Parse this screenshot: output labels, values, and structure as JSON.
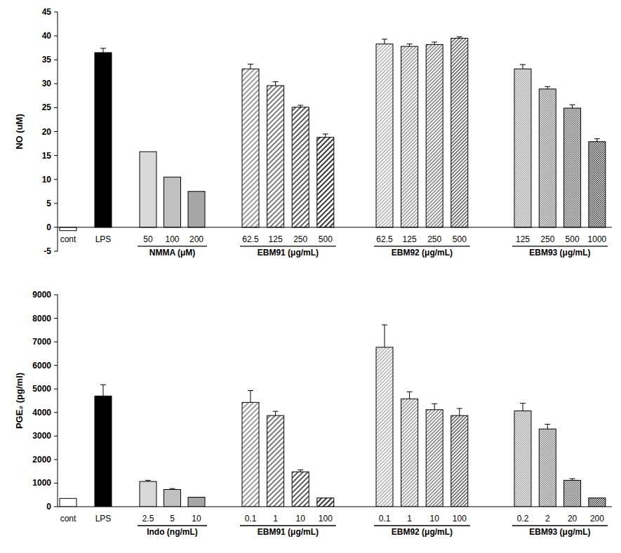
{
  "chart_data": [
    {
      "type": "bar",
      "y_label": "NO (uM)",
      "ylim": [
        -5,
        45
      ],
      "yticks": [
        -5,
        0,
        5,
        10,
        15,
        20,
        25,
        30,
        35,
        40,
        45
      ],
      "grid": false,
      "groups": [
        {
          "categories": [
            "cont",
            "LPS"
          ],
          "values": [
            -0.7,
            36.5
          ],
          "errors": [
            null,
            0.9
          ],
          "colors": [
            "#ffffff",
            "#000000"
          ]
        },
        {
          "label": "NMMA (μM)",
          "categories": [
            "50",
            "100",
            "200"
          ],
          "values": [
            15.8,
            10.5,
            7.5
          ],
          "errors": [
            null,
            null,
            null
          ],
          "colors": [
            "#d9d9d9",
            "#c0c0c0",
            "#a6a6a6"
          ]
        },
        {
          "label": "EBM91 (μg/mL)",
          "categories": [
            "62.5",
            "125",
            "250",
            "500"
          ],
          "values": [
            33.1,
            29.6,
            25.1,
            18.8
          ],
          "errors": [
            1.0,
            0.8,
            0.4,
            0.7
          ],
          "colors": [
            "#9a9a9a",
            "#7a7a7a",
            "#5a5a5a",
            "#333333"
          ]
        },
        {
          "label": "EBM92 (μg/mL)",
          "categories": [
            "62.5",
            "125",
            "250",
            "500"
          ],
          "values": [
            38.3,
            37.8,
            38.2,
            39.5
          ],
          "errors": [
            1.0,
            0.5,
            0.5,
            0.3
          ],
          "colors": [
            "#9a9a9a",
            "#7a7a7a",
            "#5a5a5a",
            "#333333"
          ]
        },
        {
          "label": "EBM93 (μg/mL)",
          "categories": [
            "125",
            "250",
            "500",
            "1000"
          ],
          "values": [
            33.1,
            28.9,
            24.9,
            17.9
          ],
          "errors": [
            0.9,
            0.5,
            0.7,
            0.6
          ],
          "colors": [
            "#9a9a9a",
            "#7a7a7a",
            "#5a5a5a",
            "#333333"
          ]
        }
      ]
    },
    {
      "type": "bar",
      "y_label": "PGE₂ (pg/ml)",
      "ylim": [
        0,
        9000
      ],
      "yticks": [
        0,
        1000,
        2000,
        3000,
        4000,
        5000,
        6000,
        7000,
        8000,
        9000
      ],
      "grid": false,
      "groups": [
        {
          "categories": [
            "cont",
            "LPS"
          ],
          "values": [
            350,
            4700
          ],
          "errors": [
            null,
            480
          ],
          "colors": [
            "#ffffff",
            "#000000"
          ]
        },
        {
          "label": "Indo (ng/mL)",
          "categories": [
            "2.5",
            "5",
            "10"
          ],
          "values": [
            1070,
            730,
            400
          ],
          "errors": [
            50,
            40,
            null
          ],
          "colors": [
            "#d9d9d9",
            "#c0c0c0",
            "#a6a6a6"
          ]
        },
        {
          "label": "EBM91 (μg/mL)",
          "categories": [
            "0.1",
            "1",
            "10",
            "100"
          ],
          "values": [
            4430,
            3870,
            1480,
            370
          ],
          "errors": [
            500,
            180,
            80,
            null
          ],
          "colors": [
            "#9a9a9a",
            "#7a7a7a",
            "#5a5a5a",
            "#333333"
          ]
        },
        {
          "label": "EBM92 (μg/mL)",
          "categories": [
            "0.1",
            "1",
            "10",
            "100"
          ],
          "values": [
            6770,
            4580,
            4120,
            3870
          ],
          "errors": [
            950,
            300,
            250,
            300
          ],
          "colors": [
            "#9a9a9a",
            "#7a7a7a",
            "#5a5a5a",
            "#333333"
          ]
        },
        {
          "label": "EBM93 (μg/mL)",
          "categories": [
            "0.2",
            "2",
            "20",
            "200"
          ],
          "values": [
            4070,
            3300,
            1120,
            370
          ],
          "errors": [
            320,
            200,
            70,
            null
          ],
          "colors": [
            "#9a9a9a",
            "#7a7a7a",
            "#5a5a5a",
            "#333333"
          ]
        }
      ]
    }
  ]
}
